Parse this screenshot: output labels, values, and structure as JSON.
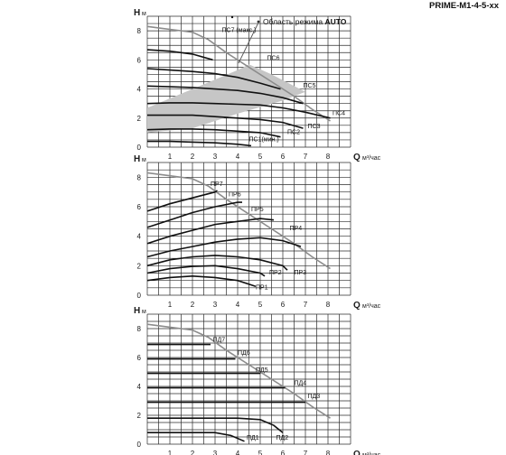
{
  "page": {
    "title": "PRIME-M1-4-5-xx",
    "auto_note": "Область режима",
    "auto_note_bold": "AUTO",
    "auto_color": "#c6c6c6",
    "max_curve_color": "#8c8c8c",
    "curve_color": "#111111"
  },
  "chart_data": [
    {
      "type": "line",
      "id": "pc",
      "xlim": [
        0,
        9
      ],
      "ylim": [
        0,
        9
      ],
      "xticks": [
        "1",
        "2",
        "3",
        "4",
        "5",
        "6",
        "7",
        "8"
      ],
      "yticks": [
        "0",
        "2",
        "4",
        "6",
        "8"
      ],
      "xlabel": "Q",
      "xunit": "м³/час",
      "ylabel": "H",
      "yunit": "м",
      "auto_area": [
        [
          0,
          2.7
        ],
        [
          0,
          1.0
        ],
        [
          2,
          1.3
        ],
        [
          4,
          2.3
        ],
        [
          6,
          3.2
        ],
        [
          7,
          3.8
        ],
        [
          5.5,
          5.0
        ],
        [
          4.5,
          5.7
        ],
        [
          4,
          5.3
        ],
        [
          2,
          4.0
        ],
        [
          0,
          2.7
        ]
      ],
      "series": [
        {
          "name": "ПС1(мин.)",
          "x": [
            0,
            1,
            2,
            3,
            4,
            4.6
          ],
          "y": [
            0.4,
            0.4,
            0.35,
            0.3,
            0.2,
            0.1
          ],
          "label_x": 4.5,
          "label_y": 0.4
        },
        {
          "name": "ПС2",
          "x": [
            0,
            1,
            2,
            3,
            4,
            5,
            5.9
          ],
          "y": [
            1.2,
            1.25,
            1.25,
            1.2,
            1.1,
            1.0,
            0.7
          ],
          "label_x": 6.2,
          "label_y": 0.9
        },
        {
          "name": "ПС3",
          "x": [
            0,
            1,
            2,
            3,
            4,
            5,
            6,
            6.9
          ],
          "y": [
            2.2,
            2.2,
            2.2,
            2.1,
            2.0,
            1.9,
            1.7,
            1.3
          ],
          "label_x": 7.1,
          "label_y": 1.3
        },
        {
          "name": "ПС4",
          "x": [
            0,
            1,
            2,
            3,
            4,
            5,
            6,
            7,
            8.1
          ],
          "y": [
            3.0,
            3.05,
            3.05,
            3.0,
            2.95,
            2.9,
            2.7,
            2.4,
            2.0
          ],
          "label_x": 8.2,
          "label_y": 2.2
        },
        {
          "name": "ПС5",
          "x": [
            0,
            1,
            2,
            3,
            4,
            5,
            6,
            6.9
          ],
          "y": [
            4.2,
            4.15,
            4.1,
            4.0,
            3.9,
            3.7,
            3.4,
            3.0
          ],
          "label_x": 6.9,
          "label_y": 4.1
        },
        {
          "name": "ПС6",
          "x": [
            0,
            1,
            2,
            3,
            4,
            5,
            5.9
          ],
          "y": [
            5.4,
            5.3,
            5.2,
            5.05,
            4.8,
            4.4,
            4.0
          ],
          "label_x": 5.3,
          "label_y": 6.0
        },
        {
          "name": "ПС7 (макс.)",
          "x": [
            0,
            1,
            2,
            2.9
          ],
          "y": [
            6.7,
            6.6,
            6.4,
            6.0
          ],
          "label_x": 3.3,
          "label_y": 7.9
        }
      ],
      "max_curve": {
        "x": [
          0,
          0.5,
          1,
          2,
          2.7,
          3.5,
          4.5,
          5.5,
          6.5,
          7.3,
          8.1
        ],
        "y": [
          8.3,
          8.2,
          8.1,
          7.9,
          7.4,
          6.5,
          5.5,
          4.5,
          3.5,
          2.6,
          1.8
        ]
      }
    },
    {
      "type": "line",
      "id": "pr",
      "xlim": [
        0,
        9
      ],
      "ylim": [
        0,
        9
      ],
      "xticks": [
        "1",
        "2",
        "3",
        "4",
        "5",
        "6",
        "7",
        "8"
      ],
      "yticks": [
        "0",
        "2",
        "4",
        "6",
        "8"
      ],
      "xlabel": "Q",
      "xunit": "м³/час",
      "ylabel": "H",
      "yunit": "м",
      "series": [
        {
          "name": "ПР1",
          "x": [
            0,
            1,
            2,
            3,
            4,
            4.8
          ],
          "y": [
            1.0,
            1.2,
            1.3,
            1.2,
            1.0,
            0.6
          ],
          "label_x": 4.8,
          "label_y": 0.4
        },
        {
          "name": "ПР2",
          "x": [
            0,
            1,
            2,
            3,
            4,
            5,
            5.2
          ],
          "y": [
            1.5,
            1.8,
            1.95,
            2.0,
            1.8,
            1.5,
            1.3
          ],
          "label_x": 5.4,
          "label_y": 1.4
        },
        {
          "name": "ПР3",
          "x": [
            0,
            1,
            2,
            3,
            4,
            5,
            6,
            6.2
          ],
          "y": [
            2.0,
            2.4,
            2.6,
            2.7,
            2.6,
            2.4,
            2.0,
            1.7
          ],
          "label_x": 6.5,
          "label_y": 1.4
        },
        {
          "name": "ПР4",
          "x": [
            0,
            1,
            2,
            3,
            4,
            5,
            6,
            6.8
          ],
          "y": [
            2.6,
            3.0,
            3.3,
            3.6,
            3.8,
            3.9,
            3.7,
            3.3
          ],
          "label_x": 6.3,
          "label_y": 4.4
        },
        {
          "name": "ПР5",
          "x": [
            0,
            1,
            2,
            3,
            4,
            5,
            5.6
          ],
          "y": [
            3.5,
            4.0,
            4.4,
            4.8,
            5.0,
            5.2,
            5.1
          ],
          "label_x": 4.6,
          "label_y": 5.7
        },
        {
          "name": "ПР6",
          "x": [
            0,
            1,
            2,
            3,
            4,
            4.2
          ],
          "y": [
            4.6,
            5.1,
            5.6,
            6.0,
            6.3,
            6.3
          ],
          "label_x": 3.6,
          "label_y": 6.7
        },
        {
          "name": "ПР7",
          "x": [
            0,
            1,
            2,
            3,
            3.1
          ],
          "y": [
            5.7,
            6.2,
            6.6,
            7.0,
            7.1
          ],
          "label_x": 2.8,
          "label_y": 7.4
        }
      ],
      "max_curve": {
        "x": [
          0,
          0.5,
          1,
          2,
          2.7,
          3.5,
          4.5,
          5.5,
          6.5,
          7.3,
          8.1
        ],
        "y": [
          8.3,
          8.2,
          8.1,
          7.9,
          7.4,
          6.5,
          5.5,
          4.5,
          3.5,
          2.6,
          1.8
        ]
      }
    },
    {
      "type": "line",
      "id": "pd",
      "xlim": [
        0,
        9
      ],
      "ylim": [
        0,
        9
      ],
      "xticks": [
        "1",
        "2",
        "3",
        "4",
        "5",
        "6",
        "7",
        "8"
      ],
      "yticks": [
        "0",
        "2",
        "4",
        "6",
        "8"
      ],
      "xlabel": "Q",
      "xunit": "м³/час",
      "ylabel": "H",
      "yunit": "м",
      "series": [
        {
          "name": "ПД1",
          "x": [
            0,
            2,
            3,
            3.7,
            4.3
          ],
          "y": [
            0.8,
            0.8,
            0.8,
            0.6,
            0.2
          ],
          "label_x": 4.4,
          "label_y": 0.3
        },
        {
          "name": "ПД2",
          "x": [
            0,
            3,
            4,
            5,
            5.6,
            6
          ],
          "y": [
            1.8,
            1.8,
            1.8,
            1.7,
            1.3,
            0.8
          ],
          "label_x": 5.7,
          "label_y": 0.3
        },
        {
          "name": "ПД3",
          "x": [
            0,
            7
          ],
          "y": [
            2.9,
            2.9
          ],
          "label_x": 7.1,
          "label_y": 3.2
        },
        {
          "name": "ПД4",
          "x": [
            0,
            6.1
          ],
          "y": [
            3.9,
            3.9
          ],
          "label_x": 6.5,
          "label_y": 4.1
        },
        {
          "name": "ПД5",
          "x": [
            0,
            5.0
          ],
          "y": [
            4.9,
            4.9
          ],
          "label_x": 4.8,
          "label_y": 5.0
        },
        {
          "name": "ПД6",
          "x": [
            0,
            3.9
          ],
          "y": [
            5.9,
            5.9
          ],
          "label_x": 4.0,
          "label_y": 6.2
        },
        {
          "name": "ПД7",
          "x": [
            0,
            2.8
          ],
          "y": [
            6.9,
            6.9
          ],
          "label_x": 2.9,
          "label_y": 7.1
        }
      ],
      "max_curve": {
        "x": [
          0,
          0.5,
          1,
          2,
          2.7,
          3.5,
          4.5,
          5.5,
          6.5,
          7.3,
          8.1
        ],
        "y": [
          8.3,
          8.2,
          8.1,
          7.9,
          7.4,
          6.5,
          5.5,
          4.5,
          3.5,
          2.6,
          1.8
        ]
      }
    }
  ]
}
